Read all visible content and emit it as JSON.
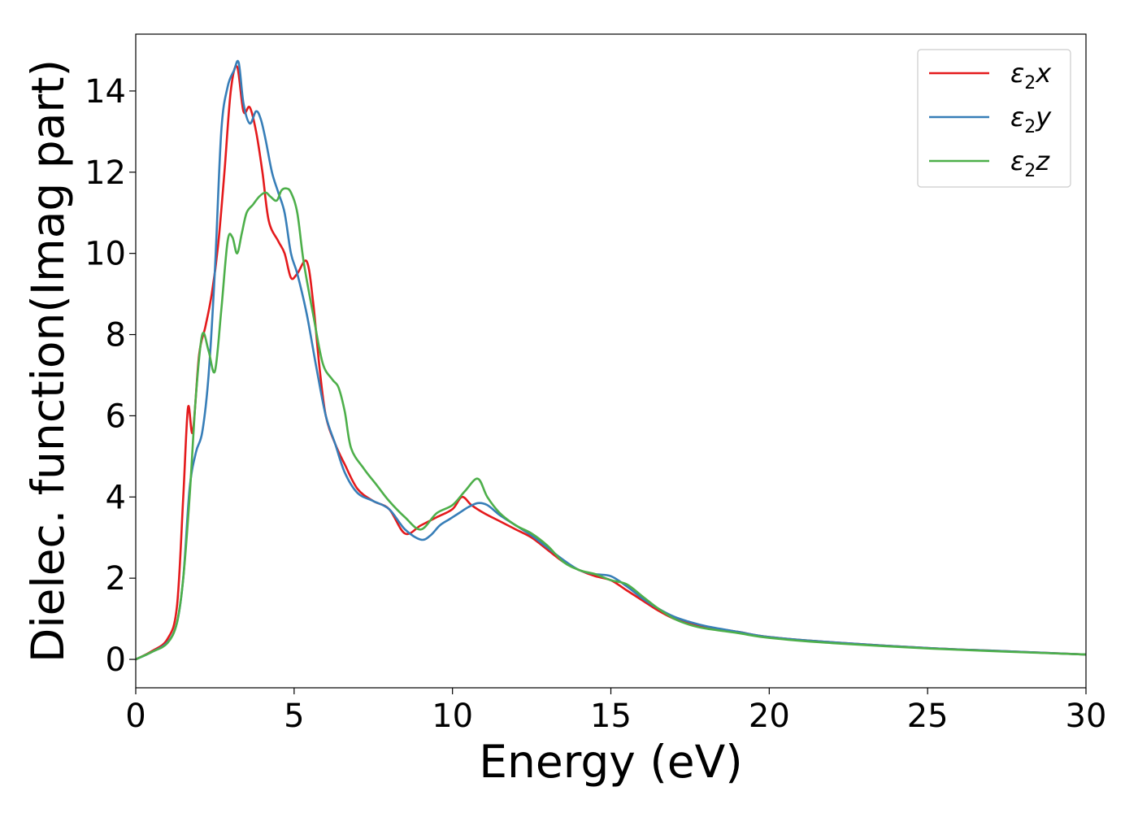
{
  "chart_data": {
    "type": "line",
    "xlabel": "Energy (eV)",
    "ylabel": "Dielec. function(Imag part)",
    "xlim": [
      0,
      30
    ],
    "ylim": [
      -0.7,
      15.4
    ],
    "xticks": [
      0,
      5,
      10,
      15,
      20,
      25,
      30
    ],
    "yticks": [
      0,
      2,
      4,
      6,
      8,
      10,
      12,
      14
    ],
    "grid": false,
    "legend_position": "top-right",
    "series": [
      {
        "name": "ε₂x",
        "legend_main": "ε",
        "legend_sub": "2",
        "legend_tail": "x",
        "color": "#e41a1c",
        "x": [
          0,
          0.5,
          1.0,
          1.3,
          1.5,
          1.65,
          1.8,
          2.0,
          2.2,
          2.4,
          2.6,
          2.8,
          3.0,
          3.2,
          3.4,
          3.6,
          3.8,
          4.0,
          4.2,
          4.5,
          4.7,
          4.9,
          5.1,
          5.4,
          5.6,
          5.8,
          6.0,
          6.3,
          6.6,
          7.0,
          7.5,
          8.0,
          8.5,
          9.0,
          9.5,
          10.0,
          10.3,
          10.6,
          11.0,
          11.5,
          12.0,
          12.5,
          13.0,
          13.5,
          14.0,
          14.5,
          15.0,
          15.5,
          16.0,
          16.5,
          17.0,
          17.5,
          18.0,
          19.0,
          20.0,
          22.0,
          25.0,
          27.5,
          30.0
        ],
        "values": [
          0.0,
          0.2,
          0.5,
          1.3,
          4.0,
          6.2,
          5.6,
          7.5,
          8.2,
          9.0,
          10.2,
          12.0,
          14.0,
          14.6,
          13.5,
          13.6,
          13.0,
          12.0,
          10.8,
          10.3,
          10.0,
          9.4,
          9.5,
          9.8,
          8.8,
          7.2,
          6.0,
          5.3,
          4.8,
          4.2,
          3.9,
          3.7,
          3.1,
          3.3,
          3.5,
          3.7,
          4.0,
          3.8,
          3.6,
          3.4,
          3.2,
          3.0,
          2.7,
          2.4,
          2.2,
          2.05,
          1.95,
          1.7,
          1.45,
          1.2,
          1.0,
          0.9,
          0.8,
          0.68,
          0.55,
          0.42,
          0.28,
          0.2,
          0.12
        ]
      },
      {
        "name": "ε₂y",
        "legend_main": "ε",
        "legend_sub": "2",
        "legend_tail": "y",
        "color": "#377eb8",
        "x": [
          0,
          0.5,
          1.0,
          1.3,
          1.5,
          1.7,
          1.9,
          2.1,
          2.3,
          2.5,
          2.7,
          2.9,
          3.1,
          3.25,
          3.4,
          3.6,
          3.8,
          3.95,
          4.1,
          4.3,
          4.5,
          4.7,
          4.9,
          5.1,
          5.4,
          5.7,
          6.0,
          6.3,
          6.6,
          7.0,
          7.5,
          8.0,
          8.5,
          9.0,
          9.3,
          9.6,
          9.9,
          10.2,
          10.5,
          10.8,
          11.1,
          11.5,
          12.0,
          12.5,
          13.0,
          13.5,
          14.0,
          14.5,
          15.0,
          15.5,
          16.0,
          16.5,
          17.0,
          17.5,
          18.0,
          19.0,
          20.0,
          22.0,
          25.0,
          27.5,
          30.0
        ],
        "values": [
          0.0,
          0.18,
          0.42,
          0.9,
          2.0,
          4.2,
          5.1,
          5.6,
          7.0,
          9.6,
          13.0,
          14.1,
          14.5,
          14.7,
          13.7,
          13.2,
          13.5,
          13.3,
          12.8,
          12.0,
          11.5,
          11.0,
          10.0,
          9.5,
          8.5,
          7.2,
          6.0,
          5.3,
          4.6,
          4.1,
          3.9,
          3.7,
          3.2,
          2.95,
          3.05,
          3.3,
          3.45,
          3.6,
          3.75,
          3.85,
          3.8,
          3.55,
          3.3,
          3.05,
          2.75,
          2.45,
          2.2,
          2.1,
          2.05,
          1.8,
          1.5,
          1.25,
          1.05,
          0.92,
          0.82,
          0.68,
          0.55,
          0.42,
          0.28,
          0.2,
          0.12
        ]
      },
      {
        "name": "ε₂z",
        "legend_main": "ε",
        "legend_sub": "2",
        "legend_tail": "z",
        "color": "#4daf4a",
        "x": [
          0,
          0.5,
          1.0,
          1.3,
          1.5,
          1.7,
          1.9,
          2.1,
          2.3,
          2.5,
          2.7,
          2.9,
          3.05,
          3.2,
          3.35,
          3.5,
          3.7,
          3.9,
          4.1,
          4.25,
          4.45,
          4.6,
          4.75,
          4.9,
          5.1,
          5.3,
          5.6,
          5.9,
          6.2,
          6.4,
          6.6,
          6.8,
          7.2,
          7.6,
          8.0,
          8.5,
          9.0,
          9.5,
          10.0,
          10.4,
          10.8,
          11.1,
          11.5,
          12.0,
          12.5,
          13.0,
          13.5,
          14.0,
          14.5,
          15.0,
          15.5,
          16.0,
          16.5,
          17.0,
          17.5,
          18.0,
          19.0,
          20.0,
          22.0,
          25.0,
          27.5,
          30.0
        ],
        "values": [
          0.0,
          0.18,
          0.4,
          0.9,
          2.0,
          4.0,
          6.5,
          8.0,
          7.6,
          7.1,
          8.6,
          10.3,
          10.4,
          10.0,
          10.5,
          11.0,
          11.2,
          11.4,
          11.5,
          11.4,
          11.3,
          11.55,
          11.6,
          11.5,
          11.0,
          9.8,
          8.5,
          7.3,
          6.9,
          6.7,
          6.1,
          5.2,
          4.7,
          4.3,
          3.9,
          3.5,
          3.2,
          3.6,
          3.8,
          4.15,
          4.45,
          4.0,
          3.6,
          3.3,
          3.1,
          2.8,
          2.4,
          2.2,
          2.1,
          1.95,
          1.85,
          1.55,
          1.25,
          1.0,
          0.85,
          0.76,
          0.65,
          0.53,
          0.4,
          0.27,
          0.19,
          0.12
        ]
      }
    ]
  }
}
